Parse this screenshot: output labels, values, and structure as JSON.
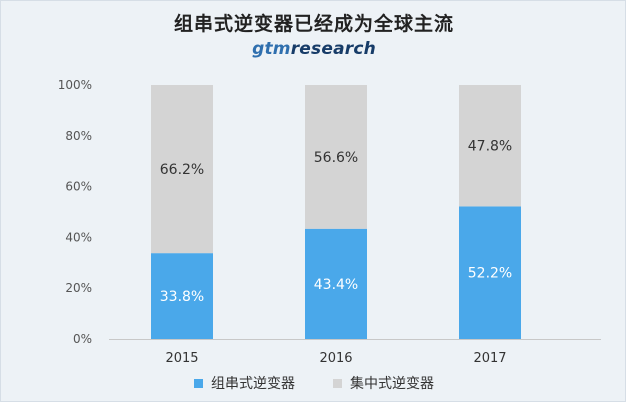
{
  "header": {
    "title": "组串式逆变器已经成为全球主流",
    "brand_light": "gtm",
    "brand_strong": "research"
  },
  "chart_data": {
    "type": "bar",
    "stacked": true,
    "categories": [
      "2015",
      "2016",
      "2017"
    ],
    "series": [
      {
        "name": "组串式逆变器",
        "values": [
          33.8,
          43.4,
          52.2
        ],
        "labels": [
          "33.8%",
          "43.4%",
          "52.2%"
        ],
        "color": "#4aa8ea",
        "label_color": "#ffffff"
      },
      {
        "name": "集中式逆变器",
        "values": [
          66.2,
          56.6,
          47.8
        ],
        "labels": [
          "66.2%",
          "56.6%",
          "47.8%"
        ],
        "color": "#d4d4d4",
        "label_color": "#333333"
      }
    ],
    "ylim": [
      0,
      100
    ],
    "yticks": [
      0,
      20,
      40,
      60,
      80,
      100
    ],
    "ytick_labels": [
      "0%",
      "20%",
      "40%",
      "60%",
      "80%",
      "100%"
    ],
    "legend_position": "bottom",
    "grid": false
  }
}
